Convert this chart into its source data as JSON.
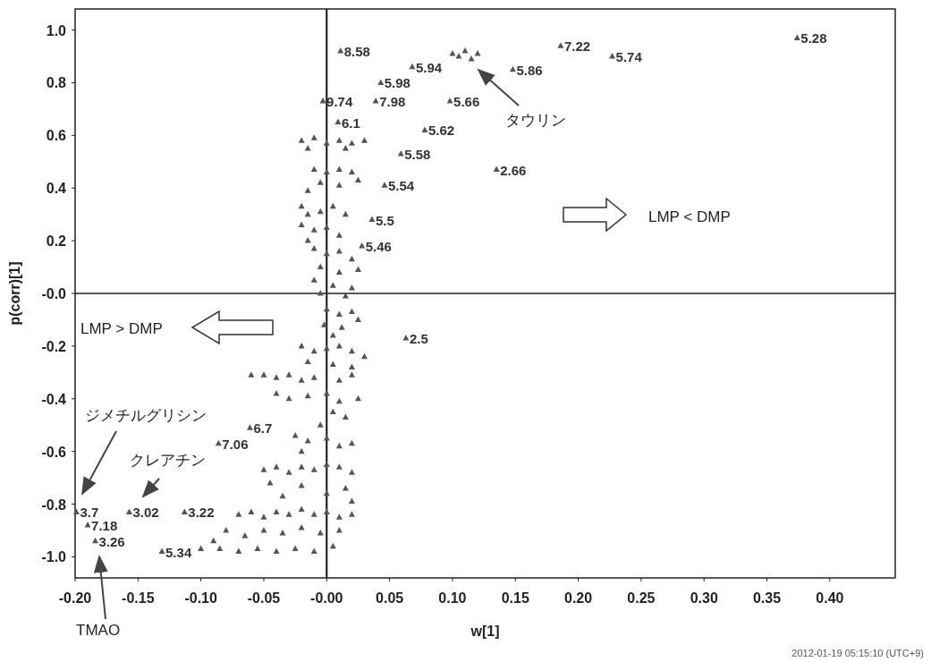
{
  "chart_data": {
    "type": "scatter",
    "xlabel": "w[1]",
    "ylabel": "p(corr)[1]",
    "xlim": [
      -0.2,
      0.452
    ],
    "ylim": [
      -1.08,
      1.08
    ],
    "xticks": [
      {
        "value": -0.2,
        "label": "-0.20"
      },
      {
        "value": -0.15,
        "label": "-0.15"
      },
      {
        "value": -0.1,
        "label": "-0.10"
      },
      {
        "value": -0.05,
        "label": "-0.05"
      },
      {
        "value": 0,
        "label": "-0.00"
      },
      {
        "value": 0.05,
        "label": "0.05"
      },
      {
        "value": 0.1,
        "label": "0.10"
      },
      {
        "value": 0.15,
        "label": "0.15"
      },
      {
        "value": 0.2,
        "label": "0.20"
      },
      {
        "value": 0.25,
        "label": "0.25"
      },
      {
        "value": 0.3,
        "label": "0.30"
      },
      {
        "value": 0.35,
        "label": "0.35"
      },
      {
        "value": 0.4,
        "label": "0.40"
      }
    ],
    "yticks": [
      {
        "value": 1,
        "label": "1.0"
      },
      {
        "value": 0.8,
        "label": "0.8"
      },
      {
        "value": 0.6,
        "label": "0.6"
      },
      {
        "value": 0.4,
        "label": "0.4"
      },
      {
        "value": 0.2,
        "label": "0.2"
      },
      {
        "value": 0,
        "label": "-0.0"
      },
      {
        "value": -0.2,
        "label": "-0.2"
      },
      {
        "value": -0.4,
        "label": "-0.4"
      },
      {
        "value": -0.6,
        "label": "-0.6"
      },
      {
        "value": -0.8,
        "label": "-0.8"
      },
      {
        "value": -1,
        "label": "-1.0"
      }
    ],
    "marker": "triangle",
    "ref_lines": [
      {
        "axis": "x",
        "value": 0
      },
      {
        "axis": "y",
        "value": 0
      }
    ],
    "annotations": [
      "タウリン",
      "ジメチルグリシン",
      "クレアチン",
      "TMAO",
      "LMP < DMP",
      "LMP > DMP",
      "2012-01-19 05:15:10 (UTC+9)"
    ],
    "series": [
      {
        "name": "8.58",
        "color": "#555555",
        "x": [
          0.011
        ],
        "values": [
          0.92
        ]
      },
      {
        "name": "5.94",
        "color": "#555555",
        "x": [
          0.068
        ],
        "values": [
          0.86
        ]
      },
      {
        "name": "5.98",
        "color": "#555555",
        "x": [
          0.043
        ],
        "values": [
          0.8
        ]
      },
      {
        "name": "9.74",
        "color": "#555555",
        "x": [
          -0.003
        ],
        "values": [
          0.73
        ]
      },
      {
        "name": "7.98",
        "color": "#555555",
        "x": [
          0.039
        ],
        "values": [
          0.73
        ]
      },
      {
        "name": "6.1",
        "color": "#555555",
        "x": [
          0.009
        ],
        "values": [
          0.65
        ]
      },
      {
        "name": "5.62",
        "color": "#555555",
        "x": [
          0.078
        ],
        "values": [
          0.62
        ]
      },
      {
        "name": "5.58",
        "color": "#555555",
        "x": [
          0.059
        ],
        "values": [
          0.53
        ]
      },
      {
        "name": "5.54",
        "color": "#555555",
        "x": [
          0.046
        ],
        "values": [
          0.41
        ]
      },
      {
        "name": "5.5",
        "color": "#555555",
        "x": [
          0.036
        ],
        "values": [
          0.28
        ]
      },
      {
        "name": "5.46",
        "color": "#555555",
        "x": [
          0.028
        ],
        "values": [
          0.18
        ]
      },
      {
        "name": "5.66",
        "color": "#555555",
        "x": [
          0.098
        ],
        "values": [
          0.73
        ]
      },
      {
        "name": "7.22",
        "color": "#555555",
        "x": [
          0.186
        ],
        "values": [
          0.94
        ]
      },
      {
        "name": "5.74",
        "color": "#555555",
        "x": [
          0.227
        ],
        "values": [
          0.9
        ]
      },
      {
        "name": "5.86",
        "color": "#555555",
        "x": [
          0.148
        ],
        "values": [
          0.85
        ]
      },
      {
        "name": "2.66",
        "color": "#555555",
        "x": [
          0.135
        ],
        "values": [
          0.47
        ]
      },
      {
        "name": "5.28",
        "color": "#555555",
        "x": [
          0.374
        ],
        "values": [
          0.97
        ]
      },
      {
        "name": "2.5",
        "color": "#555555",
        "x": [
          0.063
        ],
        "values": [
          -0.17
        ]
      },
      {
        "name": "3.7",
        "color": "#555555",
        "x": [
          -0.199
        ],
        "values": [
          -0.83
        ]
      },
      {
        "name": "3.02",
        "color": "#555555",
        "x": [
          -0.157
        ],
        "values": [
          -0.83
        ]
      },
      {
        "name": "3.22",
        "color": "#555555",
        "x": [
          -0.113
        ],
        "values": [
          -0.83
        ]
      },
      {
        "name": "7.18",
        "color": "#555555",
        "x": [
          -0.19
        ],
        "values": [
          -0.88
        ]
      },
      {
        "name": "3.26",
        "color": "#555555",
        "x": [
          -0.184
        ],
        "values": [
          -0.94
        ]
      },
      {
        "name": "5.34",
        "color": "#555555",
        "x": [
          -0.131
        ],
        "values": [
          -0.98
        ]
      },
      {
        "name": "6.7",
        "color": "#555555",
        "x": [
          -0.061
        ],
        "values": [
          -0.51
        ]
      },
      {
        "name": "7.06",
        "color": "#555555",
        "x": [
          -0.086
        ],
        "values": [
          -0.57
        ]
      },
      {
        "color": "#555555",
        "x": [
          -0.02,
          -0.01,
          0,
          0.01,
          0.02,
          0.03,
          -0.015,
          0.015,
          -0.01,
          0,
          0.01,
          0.02,
          0.025,
          -0.005,
          0.01,
          -0.015,
          -0.02,
          -0.015,
          -0.005,
          0.005,
          0.015,
          -0.02,
          -0.01,
          0,
          0.01,
          -0.015,
          -0.01,
          0,
          0.01,
          0.02,
          -0.005,
          0.01,
          0.025,
          -0.01,
          0.005,
          0.02,
          -0.005,
          0.015,
          0,
          0.01,
          0.02,
          0.025,
          -0.002,
          0.012,
          0.005,
          -0.02,
          -0.01,
          0,
          0.01,
          0.02,
          0.03,
          -0.015,
          0.005,
          0.02,
          -0.06,
          -0.05,
          -0.04,
          -0.03,
          -0.02,
          -0.01,
          0.01,
          0.02,
          -0.04,
          -0.03,
          -0.015,
          0,
          0.01,
          0.025,
          0.005,
          0.015,
          -0.005,
          -0.025,
          -0.015,
          0,
          0.01,
          0.02,
          -0.02,
          -0.05,
          -0.04,
          -0.03,
          -0.02,
          -0.01,
          0,
          0.01,
          0.02,
          -0.045,
          -0.02,
          0.015,
          -0.035,
          0,
          0.02,
          -0.07,
          -0.06,
          -0.05,
          -0.04,
          -0.03,
          -0.02,
          -0.01,
          0,
          0.01,
          0.02,
          -0.08,
          -0.065,
          -0.05,
          -0.035,
          -0.02,
          -0.005,
          0.01,
          -0.085,
          -0.07,
          -0.055,
          -0.04,
          -0.025,
          -0.01,
          0.005,
          -0.1,
          -0.09,
          0.1,
          0.11,
          0.12,
          0.115,
          0.105
        ],
        "values": [
          0.58,
          0.59,
          0.57,
          0.58,
          0.57,
          0.58,
          0.55,
          0.55,
          0.47,
          0.46,
          0.47,
          0.46,
          0.43,
          0.42,
          0.41,
          0.39,
          0.33,
          0.3,
          0.31,
          0.33,
          0.3,
          0.26,
          0.24,
          0.25,
          0.22,
          0.2,
          0.17,
          0.15,
          0.16,
          0.13,
          0.1,
          0.08,
          0.09,
          0.05,
          0.03,
          0.02,
          0,
          -0.01,
          -0.06,
          -0.08,
          -0.07,
          -0.1,
          -0.12,
          -0.13,
          -0.16,
          -0.2,
          -0.22,
          -0.21,
          -0.2,
          -0.22,
          -0.24,
          -0.26,
          -0.27,
          -0.28,
          -0.31,
          -0.31,
          -0.32,
          -0.31,
          -0.33,
          -0.32,
          -0.33,
          -0.31,
          -0.38,
          -0.4,
          -0.39,
          -0.38,
          -0.41,
          -0.4,
          -0.45,
          -0.47,
          -0.5,
          -0.54,
          -0.56,
          -0.55,
          -0.58,
          -0.57,
          -0.6,
          -0.67,
          -0.66,
          -0.68,
          -0.66,
          -0.67,
          -0.65,
          -0.66,
          -0.68,
          -0.72,
          -0.73,
          -0.74,
          -0.77,
          -0.76,
          -0.79,
          -0.84,
          -0.83,
          -0.85,
          -0.83,
          -0.84,
          -0.82,
          -0.84,
          -0.83,
          -0.85,
          -0.84,
          -0.9,
          -0.92,
          -0.9,
          -0.91,
          -0.89,
          -0.91,
          -0.9,
          -0.97,
          -0.98,
          -0.97,
          -0.98,
          -0.97,
          -0.98,
          -0.96,
          -0.97,
          -0.94,
          0.91,
          0.92,
          0.91,
          0.89,
          0.9
        ]
      }
    ]
  }
}
